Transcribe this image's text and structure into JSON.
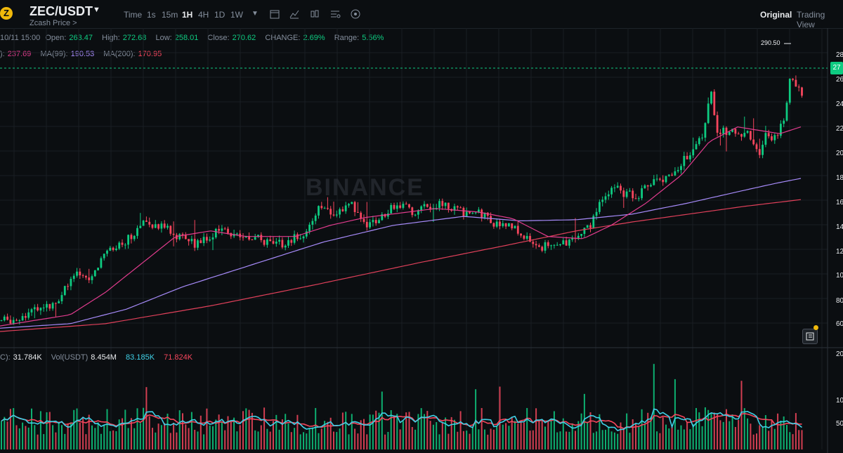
{
  "header": {
    "pair": "ZEC/USDT",
    "subtitle": "Zcash Price >",
    "timeframes": [
      "Time",
      "1s",
      "15m",
      "1H",
      "4H",
      "1D",
      "1W"
    ],
    "active_timeframe": "1H",
    "views": [
      "Original",
      "Trading View"
    ],
    "active_view": "Original"
  },
  "info": {
    "date": "10/11 15:00",
    "open_label": "Open:",
    "open": "263.47",
    "high_label": "High:",
    "high": "272.68",
    "low_label": "Low:",
    "low": "258.01",
    "close_label": "Close:",
    "close": "270.62",
    "change_label": "CHANGE:",
    "change": "2.69%",
    "range_label": "Range:",
    "range": "5.56%",
    "ma_prefix": "):",
    "ma7": "237.69",
    "ma99_label": "MA(99):",
    "ma99": "190.53",
    "ma200_label": "MA(200):",
    "ma200": "170.95",
    "vol_prefix": "C):",
    "vol_zec": "31.784K",
    "vol_usdt_label": "Vol(USDT)",
    "vol_usdt": "8.454M",
    "vol_ma1": "83.185K",
    "vol_ma2": "71.824K"
  },
  "max_label": "290.50",
  "current_price_tag": "27",
  "watermark": "BINANCE",
  "price_axis_ticks": [
    "28",
    "26",
    "24",
    "22",
    "20",
    "18",
    "16",
    "14",
    "12",
    "10",
    "80",
    "60"
  ],
  "volume_axis_ticks": [
    "20",
    "10",
    "50"
  ],
  "colors": {
    "up": "#0ecb81",
    "down": "#f6465d",
    "ma7": "#e23c8e",
    "ma99": "#a78bfa",
    "ma200": "#e0405a",
    "vma1": "#3fd0e6",
    "vma2": "#f6465d"
  },
  "chart_data": {
    "type": "candlestick",
    "ylim": [
      50,
      295
    ],
    "anchors": [
      [
        0,
        65
      ],
      [
        20,
        66
      ],
      [
        40,
        72
      ],
      [
        60,
        76
      ],
      [
        80,
        82
      ],
      [
        95,
        95
      ],
      [
        110,
        105
      ],
      [
        130,
        100
      ],
      [
        150,
        125
      ],
      [
        165,
        128
      ],
      [
        185,
        140
      ],
      [
        200,
        150
      ],
      [
        215,
        152
      ],
      [
        235,
        148
      ],
      [
        255,
        140
      ],
      [
        280,
        132
      ],
      [
        300,
        140
      ],
      [
        320,
        148
      ],
      [
        340,
        138
      ],
      [
        365,
        140
      ],
      [
        385,
        132
      ],
      [
        410,
        135
      ],
      [
        435,
        145
      ],
      [
        455,
        165
      ],
      [
        475,
        158
      ],
      [
        500,
        168
      ],
      [
        525,
        150
      ],
      [
        545,
        158
      ],
      [
        565,
        170
      ],
      [
        590,
        162
      ],
      [
        615,
        168
      ],
      [
        635,
        168
      ],
      [
        660,
        162
      ],
      [
        685,
        160
      ],
      [
        705,
        152
      ],
      [
        730,
        148
      ],
      [
        750,
        138
      ],
      [
        770,
        130
      ],
      [
        790,
        133
      ],
      [
        815,
        137
      ],
      [
        840,
        148
      ],
      [
        855,
        170
      ],
      [
        870,
        185
      ],
      [
        890,
        178
      ],
      [
        910,
        178
      ],
      [
        930,
        190
      ],
      [
        955,
        192
      ],
      [
        975,
        210
      ],
      [
        1000,
        232
      ],
      [
        1012,
        272
      ],
      [
        1020,
        232
      ],
      [
        1040,
        236
      ],
      [
        1055,
        232
      ],
      [
        1070,
        230
      ],
      [
        1080,
        212
      ],
      [
        1090,
        232
      ],
      [
        1105,
        226
      ],
      [
        1118,
        250
      ],
      [
        1125,
        282
      ],
      [
        1140,
        268
      ]
    ],
    "ma7_anchors": [
      [
        0,
        60
      ],
      [
        100,
        70
      ],
      [
        150,
        90
      ],
      [
        200,
        115
      ],
      [
        250,
        140
      ],
      [
        300,
        145
      ],
      [
        350,
        140
      ],
      [
        420,
        140
      ],
      [
        470,
        150
      ],
      [
        520,
        157
      ],
      [
        570,
        161
      ],
      [
        620,
        165
      ],
      [
        680,
        162
      ],
      [
        730,
        156
      ],
      [
        780,
        140
      ],
      [
        830,
        138
      ],
      [
        870,
        150
      ],
      [
        920,
        170
      ],
      [
        970,
        195
      ],
      [
        1010,
        225
      ],
      [
        1050,
        238
      ],
      [
        1080,
        235
      ],
      [
        1110,
        232
      ],
      [
        1140,
        238
      ]
    ],
    "ma99_anchors": [
      [
        0,
        58
      ],
      [
        100,
        62
      ],
      [
        180,
        75
      ],
      [
        260,
        95
      ],
      [
        360,
        115
      ],
      [
        460,
        135
      ],
      [
        560,
        150
      ],
      [
        660,
        158
      ],
      [
        740,
        154
      ],
      [
        820,
        155
      ],
      [
        900,
        160
      ],
      [
        980,
        170
      ],
      [
        1050,
        180
      ],
      [
        1100,
        187
      ],
      [
        1140,
        192
      ]
    ],
    "ma200_anchors": [
      [
        0,
        55
      ],
      [
        150,
        62
      ],
      [
        300,
        78
      ],
      [
        450,
        97
      ],
      [
        600,
        117
      ],
      [
        720,
        132
      ],
      [
        820,
        145
      ],
      [
        900,
        153
      ],
      [
        980,
        160
      ],
      [
        1060,
        167
      ],
      [
        1140,
        173
      ]
    ],
    "volume_ylim": [
      0,
      200
    ]
  }
}
